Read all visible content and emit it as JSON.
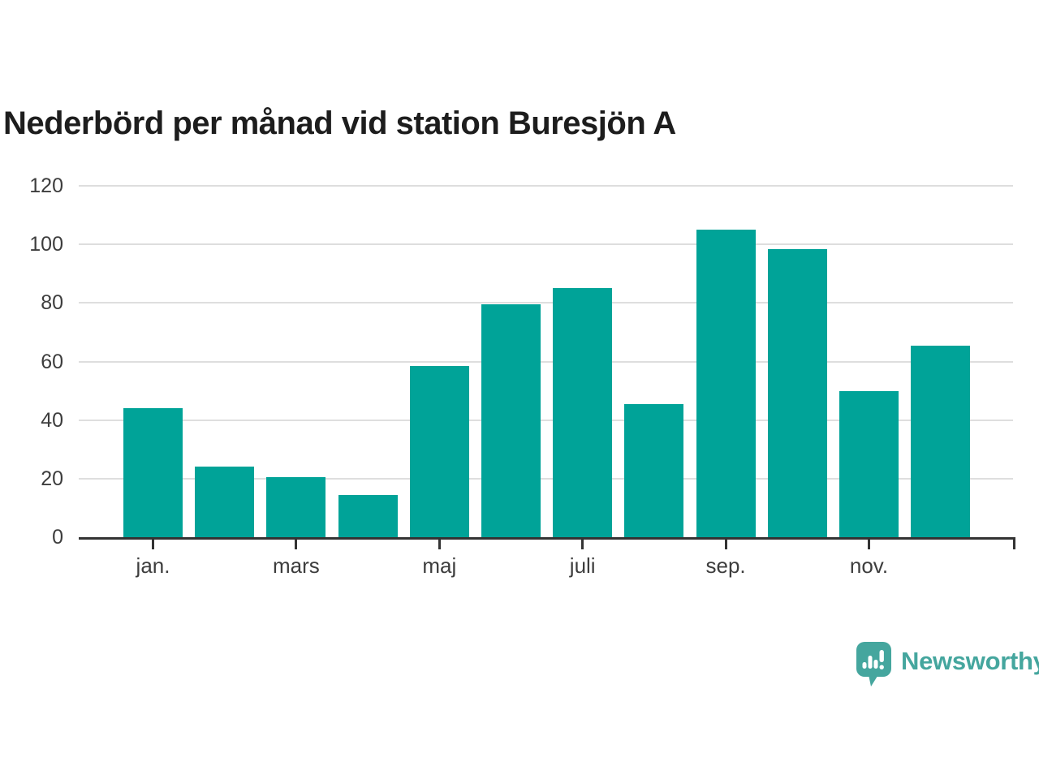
{
  "title": "Nederbörd per månad vid station Buresjön A",
  "branding": {
    "logo_text": "Newsworthy",
    "logo_icon": "speech-bubble-bar-chart-icon"
  },
  "colors": {
    "background": "#ffffff",
    "bar": "#00a398",
    "title": "#1d1d1d",
    "axis_label": "#3d3d3d",
    "gridline": "#dedede",
    "axis_line": "#333333",
    "logo": "#45a69e"
  },
  "chart_data": {
    "type": "bar",
    "title": "Nederbörd per månad vid station Buresjön A",
    "categories": [
      "jan.",
      "",
      "mars",
      "",
      "maj",
      "",
      "juli",
      "",
      "sep.",
      "",
      "nov.",
      ""
    ],
    "values": [
      44,
      24,
      20.5,
      14.5,
      58.5,
      79.5,
      85,
      45.5,
      105,
      98.5,
      50,
      65.5
    ],
    "xlabel": "",
    "ylabel": "",
    "ylim": [
      0,
      120
    ],
    "yticks": [
      0,
      20,
      40,
      60,
      80,
      100,
      120
    ],
    "xtick_labels": [
      "jan.",
      "mars",
      "maj",
      "juli",
      "sep.",
      "nov."
    ],
    "xtick_indices": [
      0,
      2,
      4,
      6,
      8,
      10
    ],
    "grid": "horizontal",
    "legend": "none",
    "bar_color": "#00a398"
  }
}
